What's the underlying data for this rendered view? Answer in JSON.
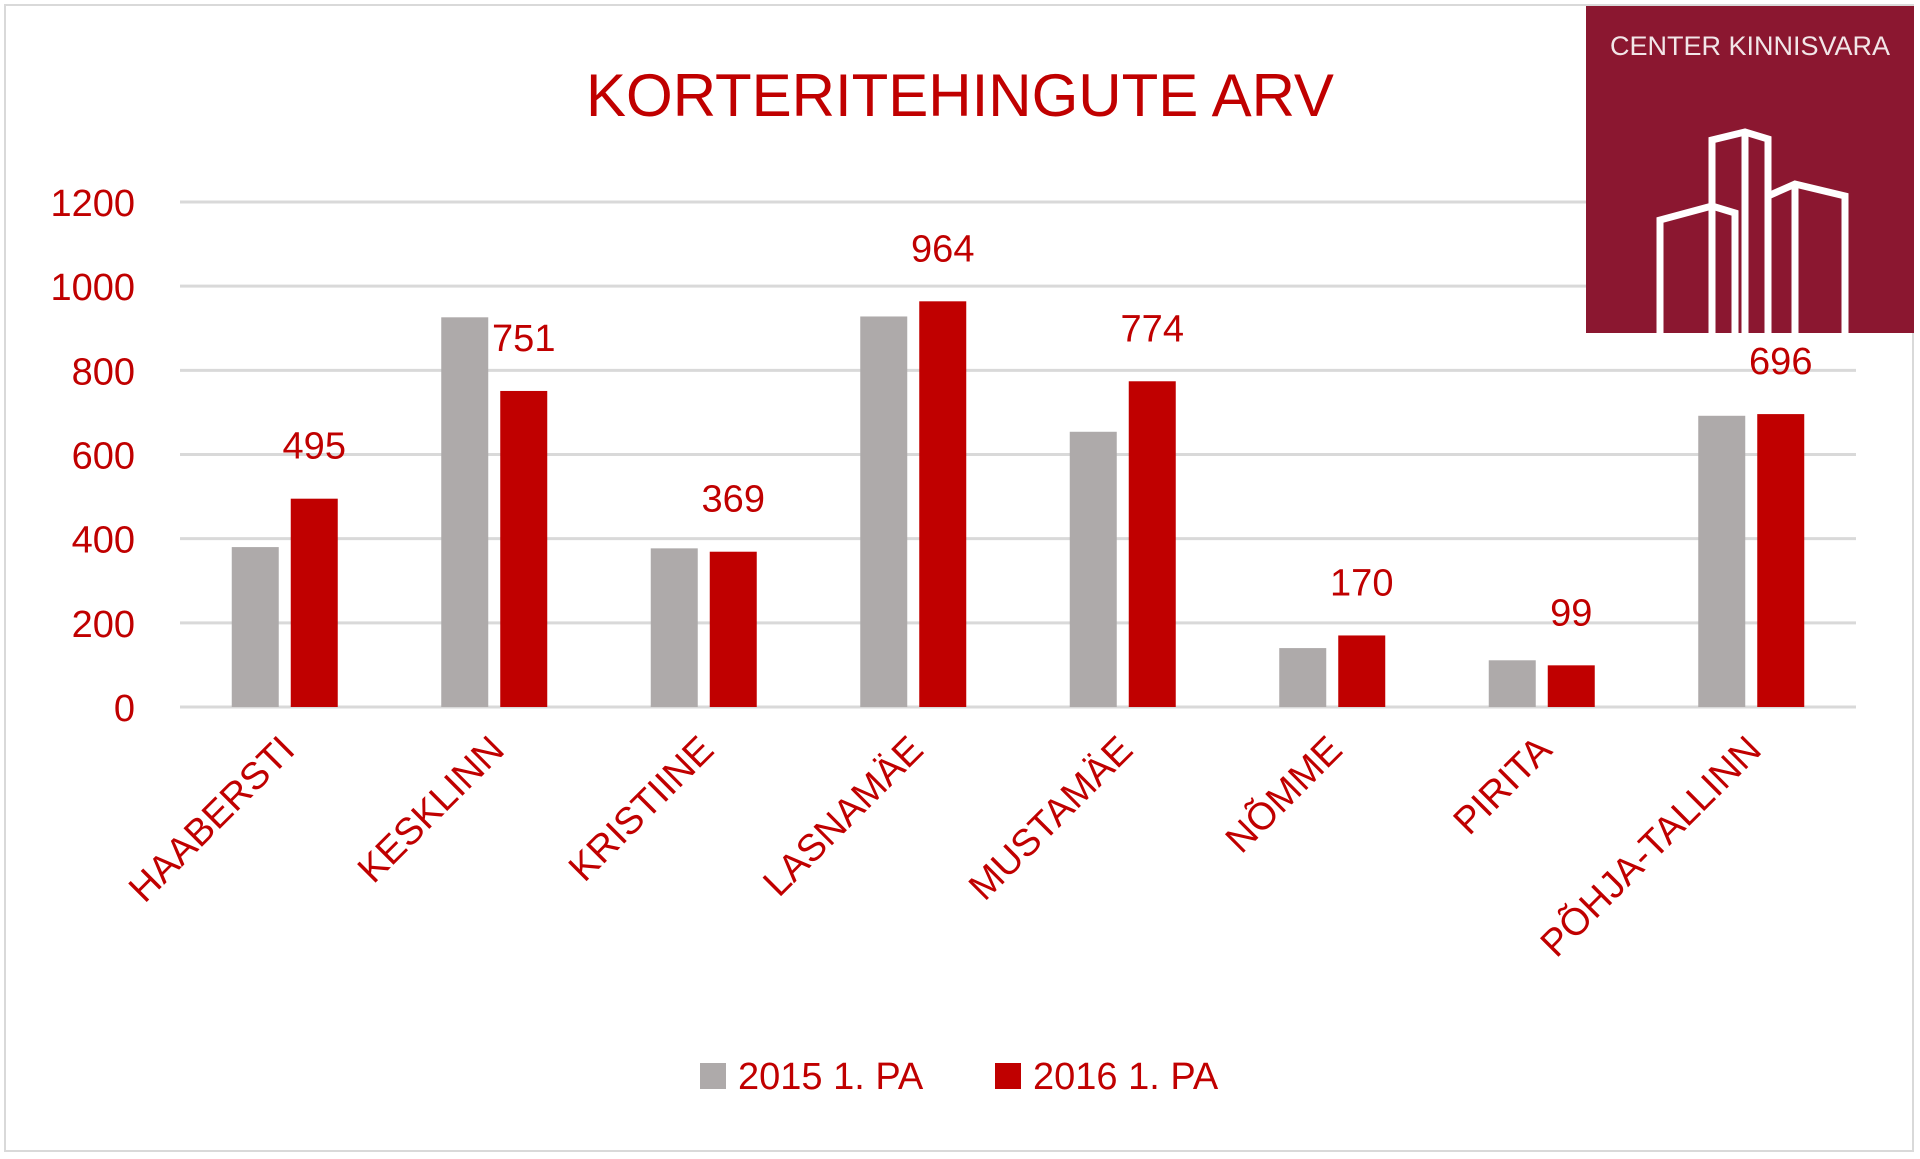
{
  "logo": {
    "text": "CENTER KINNISVARA",
    "color": "#8b1730"
  },
  "chart_data": {
    "type": "bar",
    "title": "KORTERITEHINGUTE ARV",
    "categories": [
      "HAABERSTI",
      "KESKLINN",
      "KRISTIINE",
      "LASNAMÄE",
      "MUSTAMÄE",
      "NÕMME",
      "PIRITA",
      "PÕHJA-TALLINN"
    ],
    "series": [
      {
        "name": "2015 1. PA",
        "color": "#aeaaaa",
        "values": [
          380,
          926,
          377,
          928,
          654,
          140,
          111,
          692
        ],
        "data_labels": false
      },
      {
        "name": "2016 1. PA",
        "color": "#c00000",
        "values": [
          495,
          751,
          369,
          964,
          774,
          170,
          99,
          696
        ],
        "data_labels": true
      }
    ],
    "ylim": [
      0,
      1200
    ],
    "yticks": [
      0,
      200,
      400,
      600,
      800,
      1000,
      1200
    ],
    "grid": true,
    "legend": "bottom",
    "text_color": "#c00000"
  }
}
